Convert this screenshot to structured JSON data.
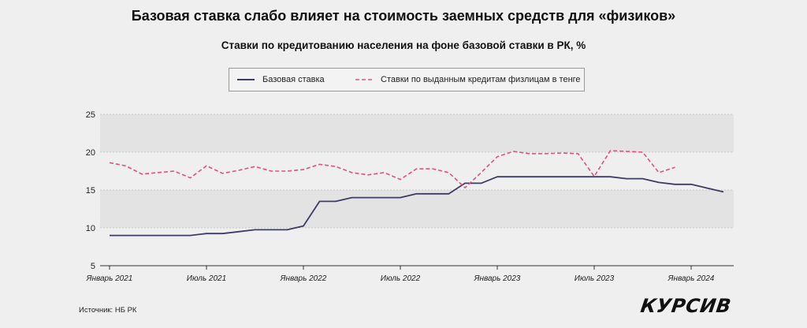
{
  "title": "Базовая ставка слабо влияет на стоимость заемных средств для «физиков»",
  "subtitle": "Ставки по кредитованию населения на фоне базовой ставки в РК, %",
  "source": "Источник: НБ РК",
  "brand": "КУРСИВ",
  "legend": {
    "base_rate": "Базовая ставка",
    "loan_rates": "Ставки по выданным кредитам физлицам в тенге"
  },
  "colors": {
    "base_rate": "#3d3c64",
    "loan_rates": "#e0527f",
    "band": "#e3e3e3",
    "grid": "#c8c8c8"
  },
  "chart_data": {
    "type": "line",
    "title": "Ставки по кредитованию населения на фоне базовой ставки в РК, %",
    "xlabel": "",
    "ylabel": "",
    "ylim": [
      5,
      25
    ],
    "yticks": [
      5,
      10,
      15,
      20,
      25
    ],
    "x_ticks": [
      {
        "index": 0,
        "label": "Январь 2021"
      },
      {
        "index": 6,
        "label": "Июль 2021"
      },
      {
        "index": 12,
        "label": "Январь 2022"
      },
      {
        "index": 18,
        "label": "Июль 2022"
      },
      {
        "index": 24,
        "label": "Январь 2023"
      },
      {
        "index": 30,
        "label": "Июль 2023"
      },
      {
        "index": 36,
        "label": "Январь 2024"
      }
    ],
    "series": [
      {
        "name": "Базовая ставка",
        "style": "solid",
        "values": [
          9,
          9,
          9,
          9,
          9,
          9,
          9.25,
          9.25,
          9.5,
          9.75,
          9.75,
          9.75,
          10.25,
          13.5,
          13.5,
          14,
          14,
          14,
          14,
          14.5,
          14.5,
          14.5,
          15.9,
          15.9,
          16.75,
          16.75,
          16.75,
          16.75,
          16.75,
          16.75,
          16.75,
          16.75,
          16.5,
          16.5,
          16,
          15.75,
          15.75,
          15.25,
          14.75
        ]
      },
      {
        "name": "Ставки по выданным кредитам физлицам в тенге",
        "style": "dashed",
        "values": [
          18.6,
          18.2,
          17.1,
          17.3,
          17.5,
          16.6,
          18.2,
          17.2,
          17.6,
          18.1,
          17.5,
          17.5,
          17.7,
          18.4,
          18.1,
          17.3,
          17.0,
          17.3,
          16.4,
          17.8,
          17.8,
          17.3,
          15.3,
          17.3,
          19.4,
          20.1,
          19.8,
          19.8,
          19.9,
          19.8,
          16.8,
          20.2,
          20.1,
          20.0,
          17.3,
          18.0
        ]
      }
    ]
  }
}
